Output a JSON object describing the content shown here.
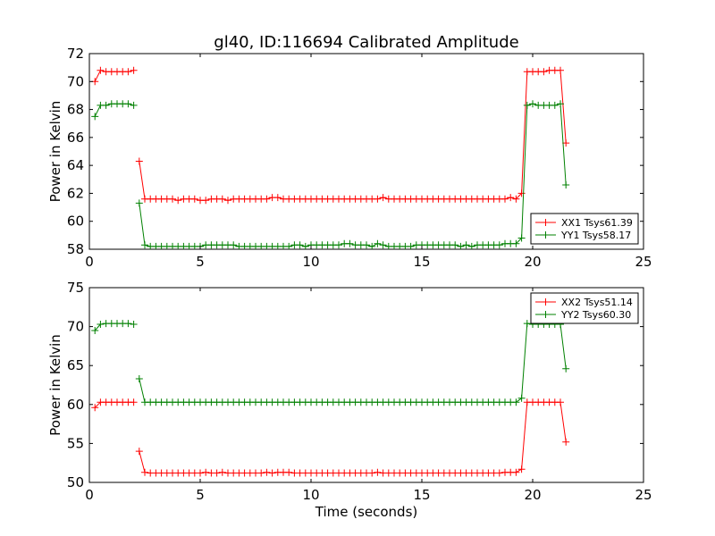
{
  "title": "gl40, ID:116694 Calibrated Amplitude",
  "xlabel": "Time (seconds)",
  "chart_data": [
    {
      "type": "line",
      "ylabel": "Power in Kelvin",
      "xlim": [
        0,
        25
      ],
      "ylim": [
        58,
        72
      ],
      "xticks": [
        0,
        5,
        10,
        15,
        20,
        25
      ],
      "yticks": [
        58,
        60,
        62,
        64,
        66,
        68,
        70,
        72
      ],
      "legend_position": "lower-right",
      "series": [
        {
          "name": "XX1 Tsys61.39",
          "color": "#ff0000",
          "segments": [
            {
              "x_start": 0.25,
              "x_step": 0.25,
              "values": [
                70.0,
                70.8,
                70.7,
                70.7,
                70.7,
                70.7,
                70.7,
                70.8
              ]
            },
            {
              "x_start": 2.25,
              "x_step": 0.25,
              "values": [
                64.3,
                61.6,
                61.6,
                61.6,
                61.6,
                61.6,
                61.6,
                61.5,
                61.6,
                61.6,
                61.6,
                61.5,
                61.5,
                61.6,
                61.6,
                61.6,
                61.5,
                61.6,
                61.6,
                61.6,
                61.6,
                61.6,
                61.6,
                61.6,
                61.7,
                61.7,
                61.6,
                61.6,
                61.6,
                61.6,
                61.6,
                61.6,
                61.6,
                61.6,
                61.6,
                61.6,
                61.6,
                61.6,
                61.6,
                61.6,
                61.6,
                61.6,
                61.6,
                61.6,
                61.7,
                61.6,
                61.6,
                61.6,
                61.6,
                61.6,
                61.6,
                61.6,
                61.6,
                61.6,
                61.6,
                61.6,
                61.6,
                61.6,
                61.6,
                61.6,
                61.6,
                61.6,
                61.6,
                61.6,
                61.6,
                61.6,
                61.6,
                61.7,
                61.6,
                62.0,
                70.7,
                70.7,
                70.7,
                70.7,
                70.8,
                70.8,
                70.8,
                65.6
              ]
            }
          ]
        },
        {
          "name": "YY1 Tsys58.17",
          "color": "#008000",
          "segments": [
            {
              "x_start": 0.25,
              "x_step": 0.25,
              "values": [
                67.5,
                68.3,
                68.3,
                68.4,
                68.4,
                68.4,
                68.4,
                68.3
              ]
            },
            {
              "x_start": 2.25,
              "x_step": 0.25,
              "values": [
                61.3,
                58.3,
                58.2,
                58.2,
                58.2,
                58.2,
                58.2,
                58.2,
                58.2,
                58.2,
                58.2,
                58.2,
                58.3,
                58.3,
                58.3,
                58.3,
                58.3,
                58.3,
                58.2,
                58.2,
                58.2,
                58.2,
                58.2,
                58.2,
                58.2,
                58.2,
                58.2,
                58.2,
                58.3,
                58.3,
                58.2,
                58.3,
                58.3,
                58.3,
                58.3,
                58.3,
                58.3,
                58.4,
                58.4,
                58.3,
                58.3,
                58.3,
                58.2,
                58.4,
                58.3,
                58.2,
                58.2,
                58.2,
                58.2,
                58.2,
                58.3,
                58.3,
                58.3,
                58.3,
                58.3,
                58.3,
                58.3,
                58.3,
                58.2,
                58.3,
                58.2,
                58.3,
                58.3,
                58.3,
                58.3,
                58.3,
                58.4,
                58.4,
                58.4,
                58.8,
                68.3,
                68.4,
                68.3,
                68.3,
                68.3,
                68.3,
                68.4,
                62.6
              ]
            }
          ]
        }
      ]
    },
    {
      "type": "line",
      "ylabel": "Power in Kelvin",
      "xlabel": "Time (seconds)",
      "xlim": [
        0,
        25
      ],
      "ylim": [
        50,
        75
      ],
      "xticks": [
        0,
        5,
        10,
        15,
        20,
        25
      ],
      "yticks": [
        50,
        55,
        60,
        65,
        70,
        75
      ],
      "legend_position": "upper-right",
      "series": [
        {
          "name": "XX2 Tsys51.14",
          "color": "#ff0000",
          "segments": [
            {
              "x_start": 0.25,
              "x_step": 0.25,
              "values": [
                59.6,
                60.3,
                60.3,
                60.3,
                60.3,
                60.3,
                60.3,
                60.3
              ]
            },
            {
              "x_start": 2.25,
              "x_step": 0.25,
              "values": [
                54.0,
                51.3,
                51.2,
                51.2,
                51.2,
                51.2,
                51.2,
                51.2,
                51.2,
                51.2,
                51.2,
                51.2,
                51.3,
                51.2,
                51.2,
                51.3,
                51.2,
                51.2,
                51.2,
                51.2,
                51.2,
                51.2,
                51.2,
                51.3,
                51.2,
                51.3,
                51.3,
                51.3,
                51.2,
                51.2,
                51.2,
                51.2,
                51.2,
                51.2,
                51.2,
                51.2,
                51.2,
                51.2,
                51.2,
                51.2,
                51.2,
                51.2,
                51.2,
                51.3,
                51.2,
                51.2,
                51.2,
                51.2,
                51.2,
                51.2,
                51.2,
                51.2,
                51.2,
                51.2,
                51.2,
                51.2,
                51.2,
                51.2,
                51.2,
                51.2,
                51.2,
                51.2,
                51.2,
                51.2,
                51.2,
                51.2,
                51.3,
                51.3,
                51.3,
                51.7,
                60.3,
                60.3,
                60.3,
                60.3,
                60.3,
                60.3,
                60.3,
                55.2
              ]
            }
          ]
        },
        {
          "name": "YY2 Tsys60.30",
          "color": "#008000",
          "segments": [
            {
              "x_start": 0.25,
              "x_step": 0.25,
              "values": [
                69.5,
                70.3,
                70.4,
                70.4,
                70.4,
                70.4,
                70.4,
                70.3
              ]
            },
            {
              "x_start": 2.25,
              "x_step": 0.25,
              "values": [
                63.3,
                60.3,
                60.3,
                60.3,
                60.3,
                60.3,
                60.3,
                60.3,
                60.3,
                60.3,
                60.3,
                60.3,
                60.3,
                60.3,
                60.3,
                60.3,
                60.3,
                60.3,
                60.3,
                60.3,
                60.3,
                60.3,
                60.3,
                60.3,
                60.3,
                60.3,
                60.3,
                60.3,
                60.3,
                60.3,
                60.3,
                60.3,
                60.3,
                60.3,
                60.3,
                60.3,
                60.3,
                60.3,
                60.3,
                60.3,
                60.3,
                60.3,
                60.3,
                60.3,
                60.3,
                60.3,
                60.3,
                60.3,
                60.3,
                60.3,
                60.3,
                60.3,
                60.3,
                60.3,
                60.3,
                60.3,
                60.3,
                60.3,
                60.3,
                60.3,
                60.3,
                60.3,
                60.3,
                60.3,
                60.3,
                60.3,
                60.3,
                60.3,
                60.3,
                60.8,
                70.4,
                70.3,
                70.3,
                70.3,
                70.3,
                70.3,
                70.3,
                64.6
              ]
            }
          ]
        }
      ]
    }
  ]
}
